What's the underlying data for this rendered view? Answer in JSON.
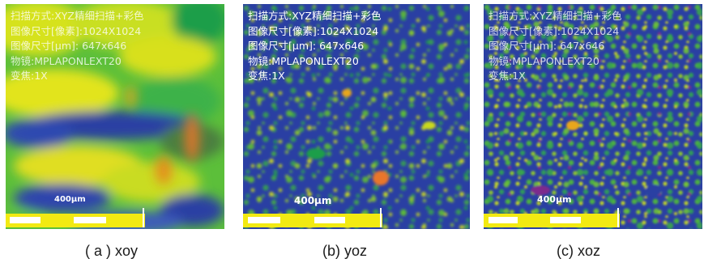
{
  "panels": [
    {
      "overlay_lines": [
        "扫描方式:XYZ精细扫描+彩色",
        "图像尺寸[像素]:1024X1024",
        "图像尺寸[μm]: 647x646",
        "物镜:MPLAPONLEXT20",
        "变焦:1X"
      ],
      "scale_label": "400μm",
      "caption": "( a ) xoy"
    },
    {
      "overlay_lines": [
        "扫描方式:XYZ精细扫描+彩色",
        "图像尺寸[像素]:1024X1024",
        "图像尺寸[μm]: 647x646",
        "物镜:MPLAPONLEXT20",
        "变焦:1X"
      ],
      "scale_label": "400μm",
      "caption": "(b) yoz"
    },
    {
      "overlay_lines": [
        "扫描方式:XYZ精细扫描+彩色",
        "图像尺寸[像素]:1024X1024",
        "图像尺寸[μm]: 647x646",
        "物镜:MPLAPONLEXT20",
        "变焦:1X"
      ],
      "scale_label": "400μm",
      "caption": "(c) xoz"
    }
  ],
  "colors": {
    "height_low": "#2a3fa3",
    "height_mid": "#1fa84a",
    "height_high": "#e8e21a",
    "height_peak": "#e9762a",
    "scale_bar": "#f2ea12"
  }
}
